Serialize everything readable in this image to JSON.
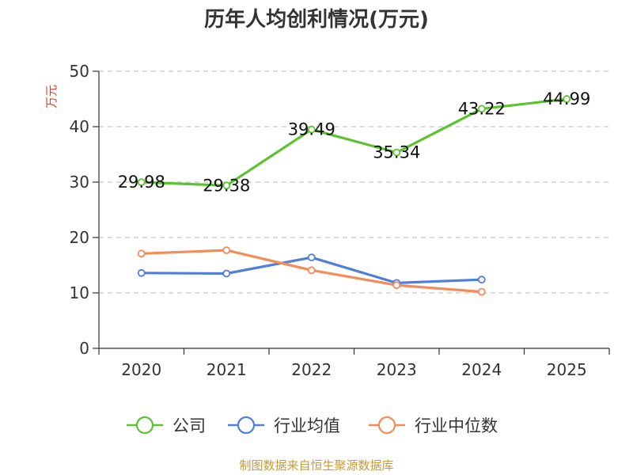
{
  "chart_data": {
    "type": "line",
    "title": "历年人均创利情况(万元)",
    "ylabel": "万元",
    "xlabel": "",
    "categories": [
      "2020",
      "2021",
      "2022",
      "2023",
      "2024",
      "2025"
    ],
    "ylim": [
      0,
      50
    ],
    "yticks": [
      "0",
      "10",
      "20",
      "30",
      "40",
      "50"
    ],
    "grid": true,
    "legend_position": "bottom",
    "series": [
      {
        "name": "公司",
        "color": "#5cc330",
        "values": [
          29.98,
          29.38,
          39.49,
          35.34,
          43.22,
          44.99
        ],
        "labels": [
          "29.98",
          "29.38",
          "39.49",
          "35.34",
          "43.22",
          "44.99"
        ]
      },
      {
        "name": "行业均值",
        "color": "#4f7fdc",
        "values": [
          13.6,
          13.5,
          16.4,
          11.8,
          12.4,
          null
        ]
      },
      {
        "name": "行业中位数",
        "color": "#f48c5a",
        "values": [
          17.1,
          17.7,
          14.1,
          11.4,
          10.2,
          null
        ]
      }
    ],
    "source": "制图数据来自恒生聚源数据库"
  }
}
